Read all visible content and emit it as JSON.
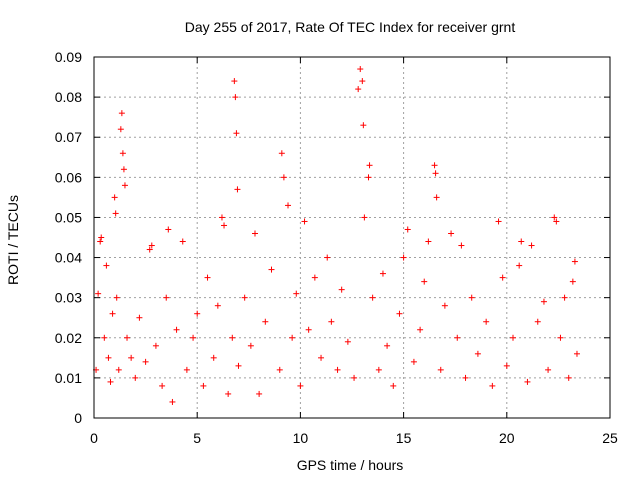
{
  "chart_data": {
    "type": "scatter",
    "title": "Day 255 of 2017, Rate Of TEC Index for receiver grnt",
    "xlabel": "GPS time / hours",
    "ylabel": "ROTI / TECUs",
    "xlim": [
      0,
      25
    ],
    "ylim": [
      0,
      0.09
    ],
    "xticks": [
      0,
      5,
      10,
      15,
      20,
      25
    ],
    "xtick_labels": [
      "0",
      "5",
      "10",
      "15",
      "20",
      "25"
    ],
    "yticks": [
      0,
      0.01,
      0.02,
      0.03,
      0.04,
      0.05,
      0.06,
      0.07,
      0.08,
      0.09
    ],
    "ytick_labels": [
      "0",
      "0.01",
      "0.02",
      "0.03",
      "0.04",
      "0.05",
      "0.06",
      "0.07",
      "0.08",
      "0.09"
    ],
    "grid": true,
    "marker": "+",
    "color": "#ff0000",
    "series": [
      {
        "values": [
          [
            0.1,
            0.012
          ],
          [
            0.2,
            0.031
          ],
          [
            0.3,
            0.044
          ],
          [
            0.35,
            0.045
          ],
          [
            0.5,
            0.02
          ],
          [
            0.6,
            0.038
          ],
          [
            0.7,
            0.015
          ],
          [
            0.8,
            0.009
          ],
          [
            0.9,
            0.026
          ],
          [
            1.0,
            0.055
          ],
          [
            1.05,
            0.051
          ],
          [
            1.1,
            0.03
          ],
          [
            1.2,
            0.012
          ],
          [
            1.3,
            0.072
          ],
          [
            1.35,
            0.076
          ],
          [
            1.4,
            0.066
          ],
          [
            1.45,
            0.062
          ],
          [
            1.5,
            0.058
          ],
          [
            1.6,
            0.02
          ],
          [
            1.8,
            0.015
          ],
          [
            2.0,
            0.01
          ],
          [
            2.2,
            0.025
          ],
          [
            2.5,
            0.014
          ],
          [
            2.7,
            0.042
          ],
          [
            2.8,
            0.043
          ],
          [
            3.0,
            0.018
          ],
          [
            3.3,
            0.008
          ],
          [
            3.5,
            0.03
          ],
          [
            3.6,
            0.047
          ],
          [
            3.8,
            0.004
          ],
          [
            4.0,
            0.022
          ],
          [
            4.3,
            0.044
          ],
          [
            4.5,
            0.012
          ],
          [
            4.8,
            0.02
          ],
          [
            5.0,
            0.026
          ],
          [
            5.3,
            0.008
          ],
          [
            5.5,
            0.035
          ],
          [
            5.8,
            0.015
          ],
          [
            6.0,
            0.028
          ],
          [
            6.2,
            0.05
          ],
          [
            6.3,
            0.048
          ],
          [
            6.5,
            0.006
          ],
          [
            6.7,
            0.02
          ],
          [
            6.8,
            0.084
          ],
          [
            6.85,
            0.08
          ],
          [
            6.9,
            0.071
          ],
          [
            6.95,
            0.057
          ],
          [
            7.0,
            0.013
          ],
          [
            7.3,
            0.03
          ],
          [
            7.6,
            0.018
          ],
          [
            7.8,
            0.046
          ],
          [
            8.0,
            0.006
          ],
          [
            8.3,
            0.024
          ],
          [
            8.6,
            0.037
          ],
          [
            9.0,
            0.012
          ],
          [
            9.1,
            0.066
          ],
          [
            9.2,
            0.06
          ],
          [
            9.4,
            0.053
          ],
          [
            9.6,
            0.02
          ],
          [
            9.8,
            0.031
          ],
          [
            10.0,
            0.008
          ],
          [
            10.2,
            0.049
          ],
          [
            10.4,
            0.022
          ],
          [
            10.7,
            0.035
          ],
          [
            11.0,
            0.015
          ],
          [
            11.3,
            0.04
          ],
          [
            11.5,
            0.024
          ],
          [
            11.8,
            0.012
          ],
          [
            12.0,
            0.032
          ],
          [
            12.3,
            0.019
          ],
          [
            12.6,
            0.01
          ],
          [
            12.8,
            0.082
          ],
          [
            12.9,
            0.087
          ],
          [
            13.0,
            0.084
          ],
          [
            13.05,
            0.073
          ],
          [
            13.1,
            0.05
          ],
          [
            13.3,
            0.06
          ],
          [
            13.35,
            0.063
          ],
          [
            13.5,
            0.03
          ],
          [
            13.8,
            0.012
          ],
          [
            14.0,
            0.036
          ],
          [
            14.2,
            0.018
          ],
          [
            14.5,
            0.008
          ],
          [
            14.8,
            0.026
          ],
          [
            15.0,
            0.04
          ],
          [
            15.2,
            0.047
          ],
          [
            15.5,
            0.014
          ],
          [
            15.8,
            0.022
          ],
          [
            16.0,
            0.034
          ],
          [
            16.2,
            0.044
          ],
          [
            16.5,
            0.063
          ],
          [
            16.55,
            0.061
          ],
          [
            16.6,
            0.055
          ],
          [
            16.8,
            0.012
          ],
          [
            17.0,
            0.028
          ],
          [
            17.3,
            0.046
          ],
          [
            17.6,
            0.02
          ],
          [
            17.8,
            0.043
          ],
          [
            18.0,
            0.01
          ],
          [
            18.3,
            0.03
          ],
          [
            18.6,
            0.016
          ],
          [
            19.0,
            0.024
          ],
          [
            19.3,
            0.008
          ],
          [
            19.6,
            0.049
          ],
          [
            19.8,
            0.035
          ],
          [
            20.0,
            0.013
          ],
          [
            20.3,
            0.02
          ],
          [
            20.6,
            0.038
          ],
          [
            20.7,
            0.044
          ],
          [
            21.0,
            0.009
          ],
          [
            21.2,
            0.043
          ],
          [
            21.5,
            0.024
          ],
          [
            21.8,
            0.029
          ],
          [
            22.0,
            0.012
          ],
          [
            22.3,
            0.05
          ],
          [
            22.4,
            0.049
          ],
          [
            22.6,
            0.02
          ],
          [
            22.8,
            0.03
          ],
          [
            23.0,
            0.01
          ],
          [
            23.2,
            0.034
          ],
          [
            23.3,
            0.039
          ],
          [
            23.4,
            0.016
          ]
        ]
      }
    ]
  }
}
